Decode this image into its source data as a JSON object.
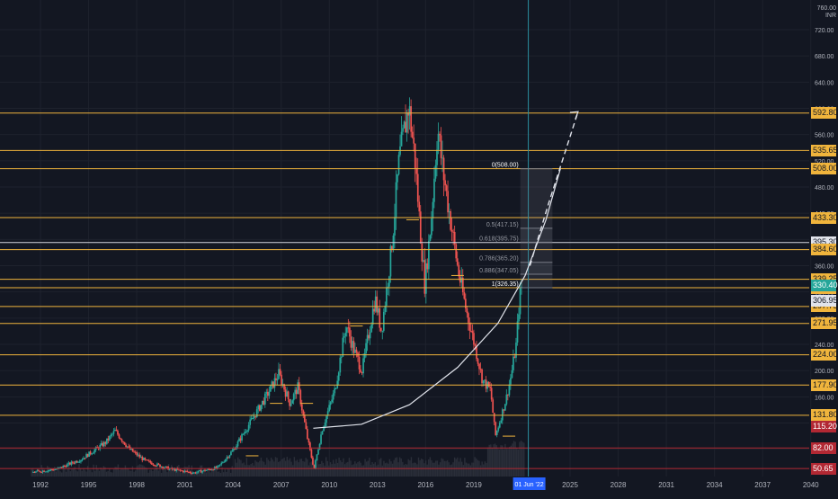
{
  "currency_top": "INR",
  "currency_clip": "760.00",
  "colors": {
    "background": "#131722",
    "grid": "#1e222d",
    "up": "#26a69a",
    "down": "#ef5350",
    "level": "#f0b43c",
    "level_white": "#d1d4dc",
    "level_red": "#b22833",
    "cursor": "#2a8fa0",
    "cursor_tag": "#2962ff",
    "axis_text": "#b2b5be"
  },
  "chart_data": {
    "type": "candlestick",
    "y_axis": {
      "ylim": [
        40,
        760
      ],
      "tick_labels": [
        "720.00",
        "680.00",
        "640.00",
        "600.00",
        "560.00",
        "520.00",
        "480.00",
        "440.00",
        "400.00",
        "360.00",
        "320.00",
        "280.00",
        "240.00",
        "200.00",
        "160.00",
        "120.00",
        "80.00",
        "50.65"
      ]
    },
    "x_axis": {
      "xlim": [
        1991,
        2041
      ],
      "tick_labels": [
        "1992",
        "1995",
        "1998",
        "2001",
        "2004",
        "2007",
        "2010",
        "2013",
        "2016",
        "2019",
        "2025",
        "2028",
        "2031",
        "2034",
        "2037",
        "2040"
      ],
      "crosshair_label": "01 Jun '22",
      "crosshair_x": 2022.4
    },
    "grid": true,
    "horizontal_levels": [
      {
        "price": 592.8,
        "label": "592.80",
        "style": "yellow"
      },
      {
        "price": 535.65,
        "label": "535.65",
        "style": "yellow"
      },
      {
        "price": 508.0,
        "label": "508.00",
        "style": "yellow"
      },
      {
        "price": 433.3,
        "label": "433.30",
        "style": "yellow"
      },
      {
        "price": 395.3,
        "label": "395.30",
        "style": "white"
      },
      {
        "price": 384.6,
        "label": "384.60",
        "style": "yellow"
      },
      {
        "price": 339.25,
        "label": "339.25",
        "style": "yellow"
      },
      {
        "price": 326.35,
        "label": "326.35",
        "style": "yellow"
      },
      {
        "price": 297.75,
        "label": "297.75",
        "style": "yellow"
      },
      {
        "price": 271.95,
        "label": "271.95",
        "style": "yellow"
      },
      {
        "price": 224.0,
        "label": "224.00",
        "style": "yellow"
      },
      {
        "price": 177.9,
        "label": "177.90",
        "style": "yellow"
      },
      {
        "price": 131.8,
        "label": "131.80",
        "style": "yellow"
      },
      {
        "price": 82.0,
        "label": "82.00",
        "style": "red"
      },
      {
        "price": 50.65,
        "label": "50.65",
        "style": "red"
      }
    ],
    "axis_price_tags": [
      {
        "price": 115.2,
        "label": "115.20",
        "style": "red"
      },
      {
        "price": 306.95,
        "label": "306.95",
        "style": "white"
      },
      {
        "price": 330.4,
        "label": "330.40",
        "style": "cyan"
      }
    ],
    "fibonacci_retracement": {
      "x_start": 2021.9,
      "x_end": 2023.9,
      "levels": [
        {
          "ratio": "0",
          "price": 508.0,
          "label": "0(508.00)"
        },
        {
          "ratio": "0.5",
          "price": 417.15,
          "label": "0.5(417.15)"
        },
        {
          "ratio": "0.618",
          "price": 395.75,
          "label": "0.618(395.75)"
        },
        {
          "ratio": "0.786",
          "price": 365.2,
          "label": "0.786(365.20)"
        },
        {
          "ratio": "0.886",
          "price": 347.05,
          "label": "0.886(347.05)"
        },
        {
          "ratio": "1",
          "price": 326.35,
          "label": "1(326.35)"
        }
      ]
    },
    "projection_curve": {
      "points": [
        [
          2009.0,
          112
        ],
        [
          2012.0,
          118
        ],
        [
          2015.0,
          148
        ],
        [
          2018.0,
          205
        ],
        [
          2020.5,
          272
        ],
        [
          2022.2,
          345
        ],
        [
          2023.5,
          430
        ],
        [
          2024.4,
          508
        ]
      ]
    },
    "projection_arrow": {
      "points": [
        [
          2022.5,
          360
        ],
        [
          2023.6,
          450
        ],
        [
          2025.5,
          595
        ]
      ]
    },
    "series_anchors": [
      [
        1991.5,
        45
      ],
      [
        1993.0,
        50
      ],
      [
        1994.5,
        65
      ],
      [
        1996.0,
        90
      ],
      [
        1996.6,
        108
      ],
      [
        1997.5,
        80
      ],
      [
        1998.5,
        62
      ],
      [
        2000.0,
        50
      ],
      [
        2001.5,
        44
      ],
      [
        2003.0,
        52
      ],
      [
        2004.0,
        80
      ],
      [
        2005.0,
        120
      ],
      [
        2006.0,
        160
      ],
      [
        2006.8,
        195
      ],
      [
        2007.5,
        150
      ],
      [
        2008.0,
        175
      ],
      [
        2008.6,
        95
      ],
      [
        2009.0,
        50
      ],
      [
        2009.5,
        110
      ],
      [
        2010.3,
        170
      ],
      [
        2011.0,
        270
      ],
      [
        2011.5,
        230
      ],
      [
        2012.0,
        200
      ],
      [
        2012.8,
        310
      ],
      [
        2013.2,
        260
      ],
      [
        2013.8,
        380
      ],
      [
        2014.3,
        520
      ],
      [
        2014.9,
        605
      ],
      [
        2015.3,
        520
      ],
      [
        2015.6,
        420
      ],
      [
        2015.9,
        330
      ],
      [
        2016.3,
        430
      ],
      [
        2016.7,
        570
      ],
      [
        2017.0,
        510
      ],
      [
        2017.5,
        430
      ],
      [
        2018.0,
        350
      ],
      [
        2018.5,
        290
      ],
      [
        2019.0,
        240
      ],
      [
        2019.5,
        185
      ],
      [
        2020.0,
        170
      ],
      [
        2020.3,
        100
      ],
      [
        2020.6,
        125
      ],
      [
        2021.0,
        160
      ],
      [
        2021.3,
        195
      ],
      [
        2021.6,
        240
      ],
      [
        2021.8,
        310
      ],
      [
        2022.0,
        336
      ]
    ]
  }
}
